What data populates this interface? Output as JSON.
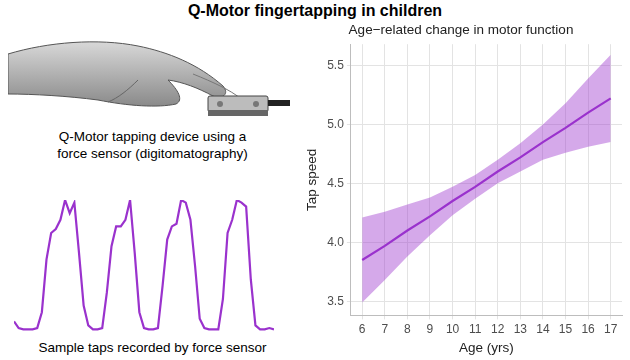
{
  "title": "Q-Motor fingertapping in children",
  "photo": {
    "caption": [
      "Q-Motor tapping device using a",
      "force sensor (digitomatography)"
    ]
  },
  "chart_data": [
    {
      "type": "line",
      "title": "Age−related change in motor function",
      "x_label": "Age (yrs)",
      "y_label": "Tap speed",
      "x": [
        6,
        7,
        8,
        9,
        10,
        11,
        12,
        13,
        14,
        15,
        16,
        17
      ],
      "values": [
        3.85,
        3.97,
        4.1,
        4.22,
        4.35,
        4.47,
        4.6,
        4.72,
        4.85,
        4.97,
        5.1,
        5.22
      ],
      "band": {
        "lower": [
          3.49,
          3.68,
          3.88,
          4.06,
          4.23,
          4.37,
          4.5,
          4.6,
          4.7,
          4.76,
          4.81,
          4.85
        ],
        "upper": [
          4.21,
          4.26,
          4.32,
          4.38,
          4.47,
          4.57,
          4.7,
          4.84,
          5.0,
          5.18,
          5.39,
          5.59
        ]
      },
      "color": "#9a32cd",
      "xlim": [
        5.5,
        17.5
      ],
      "xticks": [
        6,
        7,
        8,
        9,
        10,
        11,
        12,
        13,
        14,
        15,
        16,
        17
      ],
      "ylim": [
        3.38,
        5.68
      ],
      "yticks": [
        3.5,
        {
          "value": 4,
          "label": "4.0"
        },
        4.5,
        {
          "value": 5,
          "label": "5.0"
        },
        5.5
      ],
      "grid": true
    },
    {
      "type": "line",
      "caption": "Sample taps recorded by force sensor",
      "values": [
        0.08,
        0.03,
        0.02,
        0.02,
        0.02,
        0.03,
        0.15,
        0.55,
        0.75,
        0.78,
        0.85,
        1.0,
        0.9,
        0.98,
        0.6,
        0.2,
        0.05,
        0.02,
        0.02,
        0.03,
        0.3,
        0.65,
        0.8,
        0.8,
        0.85,
        1.0,
        0.6,
        0.15,
        0.03,
        0.02,
        0.02,
        0.03,
        0.35,
        0.7,
        0.8,
        0.82,
        1.0,
        0.98,
        0.85,
        0.5,
        0.1,
        0.03,
        0.02,
        0.02,
        0.02,
        0.25,
        0.75,
        0.85,
        1.0,
        0.98,
        0.95,
        0.4,
        0.05,
        0.02,
        0.02,
        0.03,
        0.02
      ],
      "color": "#9a32cd",
      "tick_labels": false,
      "grid": false
    }
  ]
}
